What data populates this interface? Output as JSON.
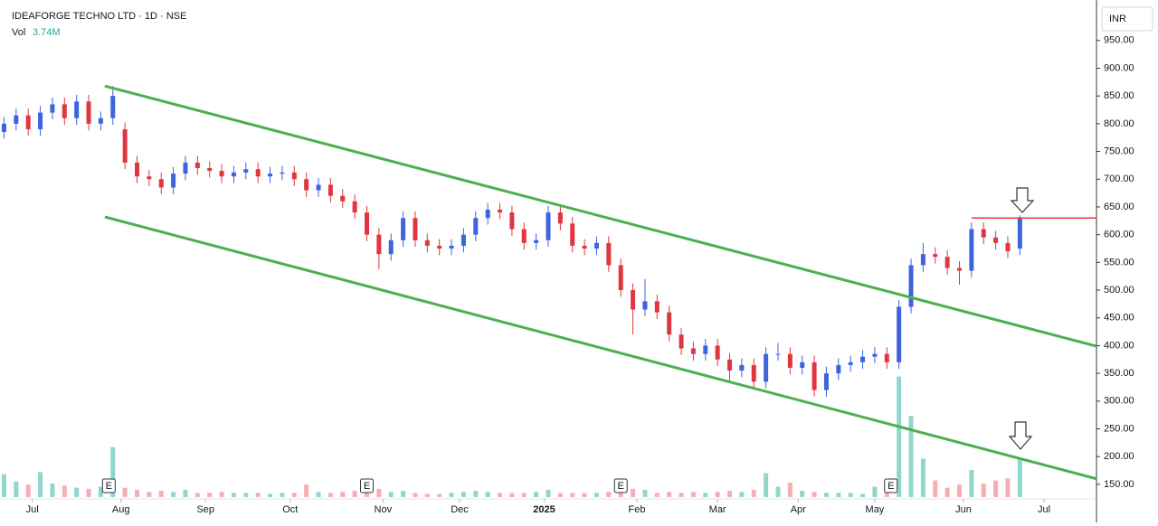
{
  "chart_data": {
    "type": "candlestick",
    "title": "IDEAFORGE TECHNO LTD · 1D · NSE",
    "volume_title": "Vol",
    "volume_last_label": "3.74M",
    "currency": "INR",
    "up_color": "#3d63dd",
    "down_color": "#e0363f",
    "volume_up_color": "#8fd6cc",
    "volume_down_color": "#f7aeb3",
    "x": [
      1,
      4,
      7,
      10,
      13,
      16,
      19,
      22,
      25,
      28,
      31,
      34,
      37,
      40,
      43,
      46,
      49,
      52,
      55,
      58,
      61,
      64,
      67,
      70,
      73,
      76,
      79,
      82,
      85,
      88,
      91,
      94,
      97,
      100,
      103,
      106,
      109,
      112,
      115,
      118,
      121,
      124,
      127,
      130,
      133,
      136,
      139,
      142,
      145,
      148,
      151,
      154,
      157,
      160,
      163,
      166,
      169,
      172,
      175,
      178,
      181,
      184,
      187,
      190,
      193,
      196,
      199,
      202,
      205,
      208,
      211,
      214,
      217,
      220,
      223,
      226,
      229,
      232,
      235,
      238,
      241,
      244,
      247,
      250,
      253
    ],
    "open": [
      785,
      800,
      815,
      790,
      820,
      835,
      810,
      840,
      800,
      810,
      790,
      730,
      705,
      700,
      685,
      710,
      730,
      720,
      715,
      705,
      712,
      718,
      705,
      710,
      712,
      700,
      680,
      690,
      670,
      660,
      640,
      600,
      565,
      590,
      630,
      590,
      580,
      575,
      580,
      600,
      630,
      645,
      640,
      610,
      585,
      590,
      640,
      620,
      580,
      575,
      585,
      545,
      500,
      465,
      480,
      460,
      420,
      395,
      385,
      400,
      375,
      355,
      365,
      335,
      385,
      385,
      360,
      370,
      320,
      350,
      365,
      370,
      380,
      385,
      370,
      470,
      545,
      565,
      560,
      540,
      535,
      610,
      595,
      585,
      575
    ],
    "high": [
      812,
      827,
      827,
      832,
      847,
      847,
      852,
      852,
      822,
      868,
      802,
      742,
      717,
      712,
      722,
      742,
      742,
      732,
      727,
      724,
      730,
      730,
      722,
      724,
      724,
      712,
      702,
      702,
      682,
      672,
      652,
      612,
      602,
      642,
      642,
      602,
      592,
      592,
      612,
      642,
      657,
      657,
      652,
      622,
      602,
      652,
      652,
      632,
      592,
      597,
      597,
      557,
      512,
      520,
      492,
      472,
      432,
      407,
      412,
      412,
      387,
      377,
      377,
      397,
      405,
      397,
      382,
      382,
      362,
      377,
      382,
      392,
      397,
      397,
      482,
      557,
      585,
      577,
      572,
      552,
      622,
      622,
      607,
      597,
      635
    ],
    "low": [
      773,
      788,
      778,
      778,
      808,
      798,
      798,
      788,
      788,
      798,
      718,
      693,
      688,
      673,
      673,
      698,
      708,
      703,
      693,
      693,
      700,
      693,
      693,
      698,
      688,
      668,
      668,
      658,
      648,
      628,
      588,
      538,
      553,
      578,
      578,
      568,
      563,
      563,
      568,
      588,
      618,
      628,
      598,
      573,
      573,
      578,
      608,
      568,
      563,
      563,
      533,
      488,
      420,
      453,
      448,
      408,
      383,
      373,
      373,
      363,
      335,
      343,
      323,
      323,
      373,
      348,
      348,
      308,
      308,
      338,
      353,
      358,
      368,
      358,
      358,
      458,
      533,
      548,
      528,
      510,
      523,
      583,
      573,
      558,
      563
    ],
    "close": [
      800,
      815,
      790,
      820,
      835,
      810,
      840,
      800,
      810,
      850,
      730,
      705,
      700,
      685,
      710,
      730,
      720,
      715,
      705,
      712,
      718,
      705,
      710,
      712,
      700,
      680,
      690,
      670,
      660,
      640,
      600,
      565,
      590,
      630,
      590,
      580,
      575,
      580,
      600,
      630,
      645,
      640,
      610,
      585,
      590,
      640,
      620,
      580,
      575,
      585,
      545,
      500,
      465,
      480,
      460,
      420,
      395,
      385,
      400,
      375,
      355,
      365,
      335,
      385,
      385,
      360,
      370,
      320,
      350,
      365,
      370,
      380,
      385,
      370,
      470,
      545,
      565,
      560,
      540,
      535,
      610,
      595,
      585,
      570,
      630
    ],
    "volume": [
      2.2,
      1.5,
      1.2,
      2.4,
      1.3,
      1.1,
      0.9,
      0.8,
      1.0,
      4.8,
      0.9,
      0.7,
      0.5,
      0.6,
      0.5,
      0.7,
      0.4,
      0.4,
      0.5,
      0.4,
      0.4,
      0.4,
      0.3,
      0.4,
      0.4,
      1.2,
      0.5,
      0.4,
      0.5,
      0.6,
      0.7,
      0.8,
      0.5,
      0.6,
      0.4,
      0.3,
      0.3,
      0.4,
      0.5,
      0.6,
      0.5,
      0.4,
      0.4,
      0.4,
      0.5,
      0.7,
      0.4,
      0.4,
      0.4,
      0.4,
      0.5,
      0.6,
      0.8,
      0.7,
      0.4,
      0.5,
      0.4,
      0.5,
      0.4,
      0.5,
      0.6,
      0.5,
      0.7,
      2.3,
      1.0,
      1.4,
      0.6,
      0.5,
      0.4,
      0.4,
      0.4,
      0.3,
      1.0,
      0.6,
      11.6,
      7.8,
      3.7,
      1.6,
      0.9,
      1.2,
      2.6,
      1.3,
      1.6,
      1.8,
      3.74
    ],
    "xlim": [
      0,
      272
    ],
    "ylim": [
      127,
      1023
    ],
    "xticks": [
      {
        "value": 8,
        "label": "Jul"
      },
      {
        "value": 30,
        "label": "Aug"
      },
      {
        "value": 51,
        "label": "Sep"
      },
      {
        "value": 72,
        "label": "Oct"
      },
      {
        "value": 95,
        "label": "Nov"
      },
      {
        "value": 114,
        "label": "Dec"
      },
      {
        "value": 135,
        "label": "2025"
      },
      {
        "value": 158,
        "label": "Feb"
      },
      {
        "value": 178,
        "label": "Mar"
      },
      {
        "value": 198,
        "label": "Apr"
      },
      {
        "value": 217,
        "label": "May"
      },
      {
        "value": 239,
        "label": "Jun"
      },
      {
        "value": 259,
        "label": "Jul"
      }
    ],
    "yticks": [
      {
        "value": 150,
        "label": "150.00"
      },
      {
        "value": 200,
        "label": "200.00"
      },
      {
        "value": 250,
        "label": "250.00"
      },
      {
        "value": 300,
        "label": "300.00"
      },
      {
        "value": 350,
        "label": "350.00"
      },
      {
        "value": 400,
        "label": "400.00"
      },
      {
        "value": 450,
        "label": "450.00"
      },
      {
        "value": 500,
        "label": "500.00"
      },
      {
        "value": 550,
        "label": "550.00"
      },
      {
        "value": 600,
        "label": "600.00"
      },
      {
        "value": 650,
        "label": "650.00"
      },
      {
        "value": 700,
        "label": "700.00"
      },
      {
        "value": 750,
        "label": "750.00"
      },
      {
        "value": 800,
        "label": "800.00"
      },
      {
        "value": 850,
        "label": "850.00"
      },
      {
        "value": 900,
        "label": "900.00"
      },
      {
        "value": 950,
        "label": "950.00"
      }
    ],
    "lines": [
      {
        "color": "#4caf50",
        "x": [
          26,
          272
        ],
        "y": [
          868,
          399
        ]
      },
      {
        "color": "#4caf50",
        "x": [
          26,
          272
        ],
        "y": [
          632,
          160
        ]
      },
      {
        "color": "#f23645",
        "x": [
          241,
          272
        ],
        "y": [
          630,
          630
        ]
      }
    ],
    "events": [
      {
        "x": 27,
        "label": "E"
      },
      {
        "x": 91,
        "label": "E"
      },
      {
        "x": 154,
        "label": "E"
      },
      {
        "x": 221,
        "label": "E"
      }
    ]
  }
}
